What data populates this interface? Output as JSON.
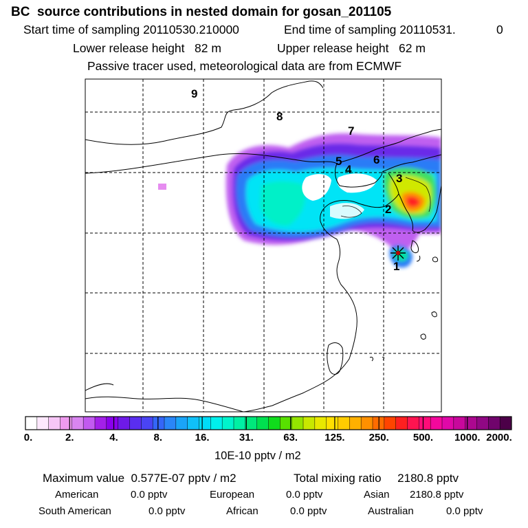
{
  "header": {
    "title": "BC  source contributions in nested domain for gosan_201105",
    "start_sampling": "Start time of sampling 20110530.210000",
    "end_sampling": "End time of sampling 20110531.",
    "end_sampling_hour": "0",
    "lower_release": "Lower release height   82 m",
    "upper_release": "Upper release height   62 m",
    "tracer_note": "Passive tracer used, meteorological data are from ECMWF"
  },
  "map": {
    "region_labels": [
      "1",
      "2",
      "3",
      "4",
      "5",
      "6",
      "7",
      "8",
      "9"
    ],
    "receptor": "star-marker"
  },
  "colorbar": {
    "tick_labels": [
      "0.",
      "2.",
      "4.",
      "8.",
      "16.",
      "31.",
      "63.",
      "125.",
      "250.",
      "500.",
      "1000.",
      "2000."
    ],
    "colors": [
      "#ffffff",
      "#fde8fd",
      "#f7c6f7",
      "#ee9aee",
      "#d985f0",
      "#c25af0",
      "#a320e8",
      "#8a00ec",
      "#6e1ae8",
      "#5a2ef0",
      "#4a44f4",
      "#3466f8",
      "#2a86f8",
      "#1aa4f8",
      "#10c0f8",
      "#00dcf8",
      "#00f0ec",
      "#00f4cc",
      "#00f0a4",
      "#00e87c",
      "#00e050",
      "#10dc1c",
      "#58e000",
      "#94e400",
      "#c8e800",
      "#e8e800",
      "#ffe000",
      "#ffcc00",
      "#ffb000",
      "#ff9000",
      "#ff6c00",
      "#ff4400",
      "#ff2020",
      "#ff1450",
      "#ff0c78",
      "#f4089c",
      "#e008a8",
      "#c8089c",
      "#ac0890",
      "#900884",
      "#70046c",
      "#4c0048"
    ],
    "units": "10E-10 pptv / m2"
  },
  "stats": {
    "max_value": "Maximum value  0.577E-07 pptv / m2",
    "total_mixing": "Total mixing ratio     2180.8 pptv",
    "american_label": "American",
    "american_value": "0.0 pptv",
    "european_label": "European",
    "european_value": "0.0 pptv",
    "asian_label": "Asian",
    "asian_value": "2180.8 pptv",
    "south_american_label": "South American",
    "south_american_value": "0.0 pptv",
    "african_label": "African",
    "african_value": "0.0 pptv",
    "australian_label": "Australian",
    "australian_value": "0.0 pptv"
  }
}
